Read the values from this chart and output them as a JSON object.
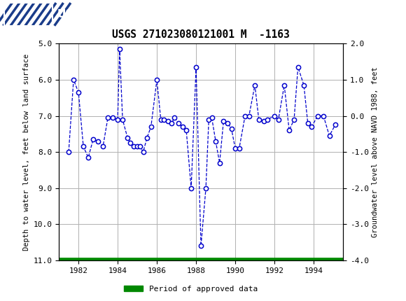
{
  "title": "USGS 271023080121001 M  -1163",
  "ylabel_left": "Depth to water level, feet below land surface",
  "ylabel_right": "Groundwater level above NAVD 1988, feet",
  "ylim_left": [
    11.0,
    5.0
  ],
  "ylim_right": [
    -4.0,
    2.0
  ],
  "yticks_left": [
    5.0,
    6.0,
    7.0,
    8.0,
    9.0,
    10.0,
    11.0
  ],
  "yticks_right": [
    -4.0,
    -3.0,
    -2.0,
    -1.0,
    0.0,
    1.0,
    2.0
  ],
  "xlim": [
    1981.0,
    1995.5
  ],
  "xticks": [
    1982,
    1984,
    1986,
    1988,
    1990,
    1992,
    1994
  ],
  "header_color": "#1a6b3a",
  "line_color": "#0000cc",
  "marker_color": "#0000cc",
  "grid_color": "#b0b0b0",
  "legend_label": "Period of approved data",
  "legend_color": "#008800",
  "approved_bar_y": 11.0,
  "x_data": [
    1981.5,
    1981.75,
    1982.0,
    1982.25,
    1982.5,
    1982.75,
    1983.0,
    1983.25,
    1983.5,
    1983.75,
    1984.0,
    1984.1,
    1984.25,
    1984.5,
    1984.65,
    1984.8,
    1985.0,
    1985.15,
    1985.3,
    1985.5,
    1985.7,
    1986.0,
    1986.2,
    1986.35,
    1986.55,
    1986.75,
    1986.9,
    1987.1,
    1987.3,
    1987.5,
    1987.75,
    1988.0,
    1988.25,
    1988.5,
    1988.65,
    1988.8,
    1989.0,
    1989.2,
    1989.4,
    1989.6,
    1989.8,
    1990.0,
    1990.2,
    1990.5,
    1990.7,
    1991.0,
    1991.2,
    1991.45,
    1991.65,
    1992.0,
    1992.2,
    1992.5,
    1992.75,
    1993.0,
    1993.2,
    1993.5,
    1993.7,
    1993.9,
    1994.2,
    1994.5,
    1994.8,
    1995.1
  ],
  "y_data": [
    8.0,
    6.0,
    6.35,
    7.85,
    8.15,
    7.65,
    7.7,
    7.85,
    7.05,
    7.05,
    7.1,
    5.15,
    7.1,
    7.6,
    7.75,
    7.85,
    7.85,
    7.85,
    8.0,
    7.6,
    7.3,
    6.0,
    7.1,
    7.1,
    7.15,
    7.2,
    7.05,
    7.2,
    7.3,
    7.4,
    9.0,
    5.65,
    10.6,
    9.0,
    7.1,
    7.05,
    7.7,
    8.3,
    7.15,
    7.2,
    7.35,
    7.9,
    7.9,
    7.0,
    7.0,
    6.15,
    7.1,
    7.15,
    7.1,
    7.0,
    7.1,
    6.15,
    7.4,
    7.1,
    5.65,
    6.15,
    7.2,
    7.3,
    7.0,
    7.0,
    7.55,
    7.25
  ]
}
